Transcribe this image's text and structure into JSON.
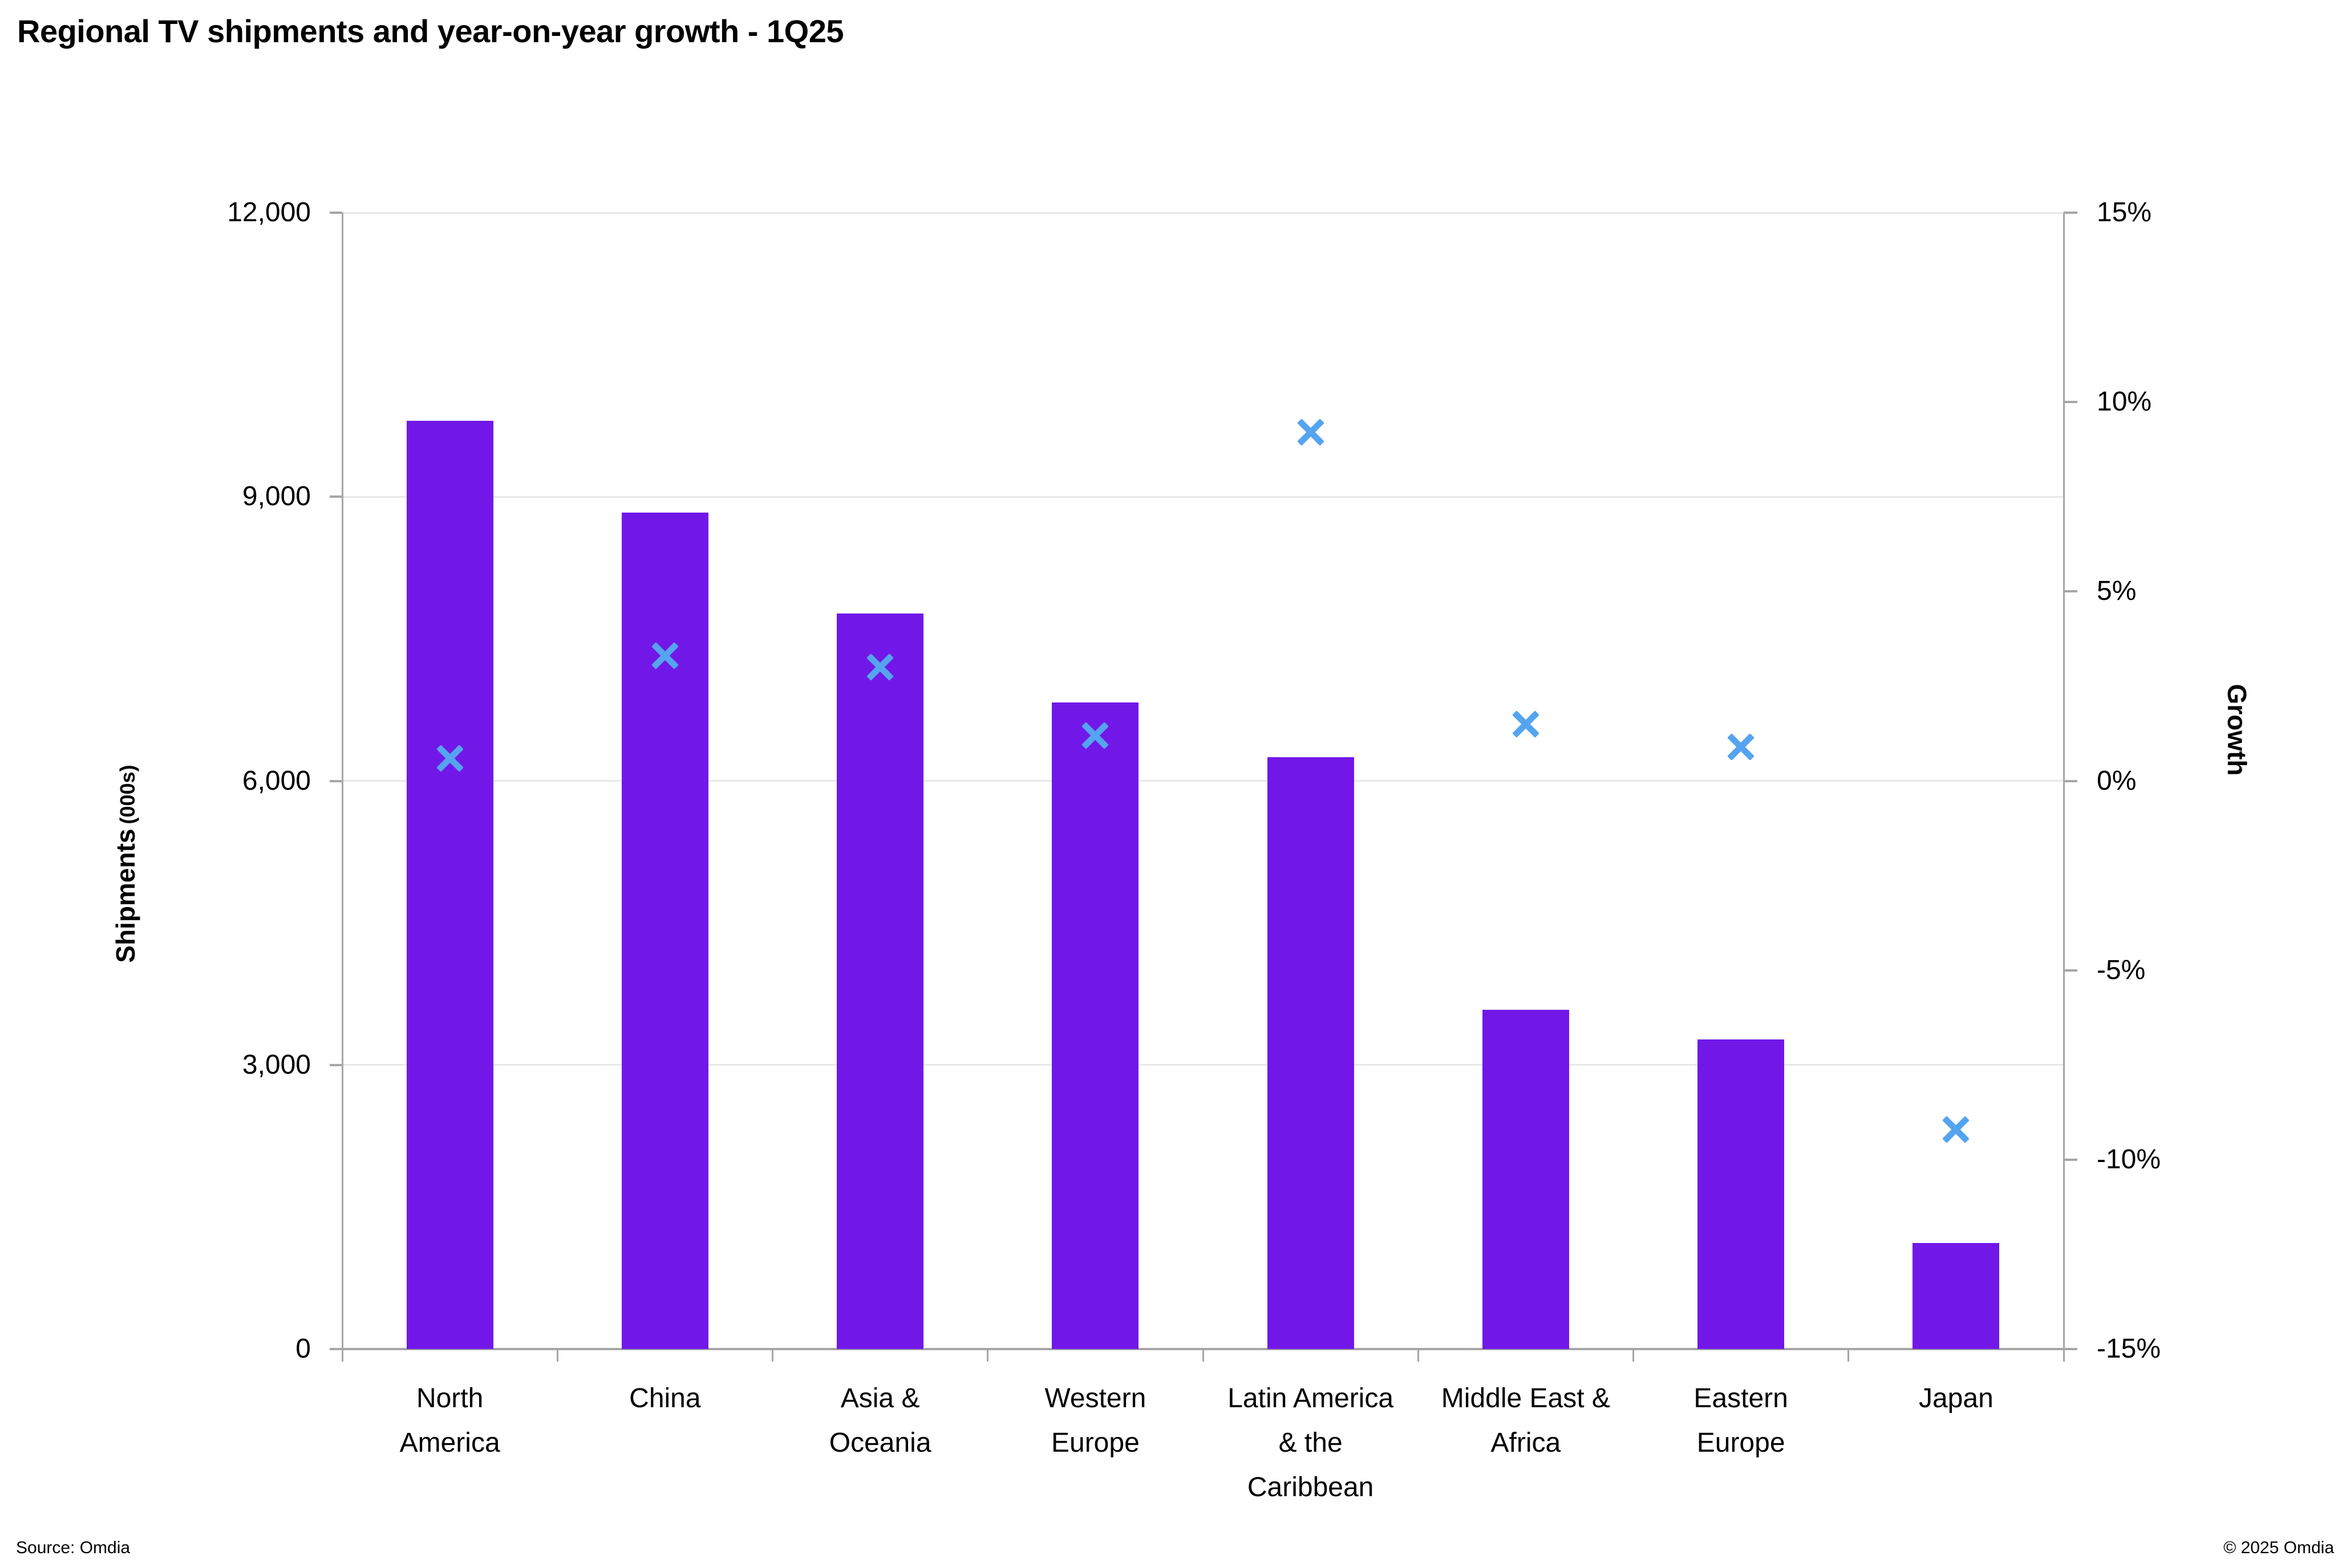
{
  "page": {
    "title": "Regional TV shipments and year-on-year growth - 1Q25",
    "source": "Source: Omdia",
    "copyright": "© 2025 Omdia"
  },
  "colors": {
    "bar": "#7118E8",
    "marker": "#55A4F0",
    "gridline": "#E8E8E8",
    "axis": "#A6A6A6",
    "text": "#000000"
  },
  "chart_data": {
    "type": "bar",
    "subtype": "columns (left axis) with scatter x-markers (right axis), dual-axis combo",
    "title": "Regional TV shipments and year-on-year growth - 1Q25",
    "categories": [
      "North America",
      "China",
      "Asia & Oceania",
      "Western Europe",
      "Latin America & the Caribbean",
      "Middle East & Africa",
      "Eastern Europe",
      "Japan"
    ],
    "category_label_lines": [
      [
        "North",
        "America"
      ],
      [
        "China"
      ],
      [
        "Asia &",
        "Oceania"
      ],
      [
        "Western",
        "Europe"
      ],
      [
        "Latin America",
        "& the",
        "Caribbean"
      ],
      [
        "Middle East &",
        "Africa"
      ],
      [
        "Eastern",
        "Europe"
      ],
      [
        "Japan"
      ]
    ],
    "series": [
      {
        "name": "Shipments (000s)",
        "type": "bar",
        "axis": "left",
        "values": [
          9800,
          8830,
          7770,
          6830,
          6250,
          3580,
          3270,
          1120
        ]
      },
      {
        "name": "Growth",
        "type": "scatter",
        "marker": "x",
        "axis": "right",
        "unit": "%",
        "values": [
          0.6,
          3.3,
          3.0,
          1.2,
          9.2,
          1.5,
          0.9,
          -9.2
        ]
      }
    ],
    "left_axis": {
      "title": "Shipments",
      "title_suffix": "(000s)",
      "range": [
        0,
        12000
      ],
      "tick_interval": 3000,
      "tick_labels": [
        "0",
        "3,000",
        "6,000",
        "9,000",
        "12,000"
      ]
    },
    "right_axis": {
      "title": "Growth",
      "range": [
        -15,
        15
      ],
      "tick_interval": 5,
      "tick_labels": [
        "-15%",
        "-10%",
        "-5%",
        "0%",
        "5%",
        "10%",
        "15%"
      ]
    },
    "grid": "horizontal gridlines at left-axis ticks only",
    "legend": "none",
    "source": "Source: Omdia",
    "copyright": "© 2025 Omdia"
  }
}
